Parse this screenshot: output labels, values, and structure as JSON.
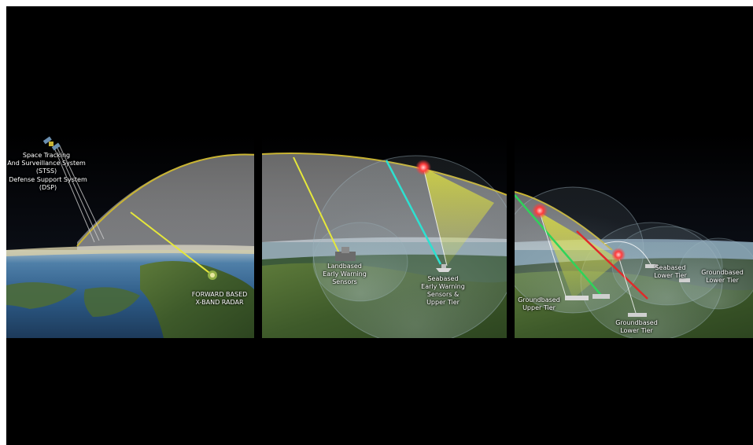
{
  "colors": {
    "background": "#000000",
    "trajectory": "#c9b433",
    "sensor_beam_yellow": "#e6e83a",
    "sensor_beam_cyan": "#2ee0d0",
    "interceptor_green": "#2fd35a",
    "interceptor_red": "#e02a2a",
    "threat_burst": "#ff3b3b"
  },
  "panels": {
    "left": {
      "stss_lines": [
        "Space Tracking",
        "And Surveillance System",
        "(STSS)"
      ],
      "dsp_lines": [
        "Defense Support System",
        "(DSP)"
      ],
      "radar_lines": [
        "FORWARD BASED",
        "X-BAND RADAR"
      ],
      "icons": {
        "satellite": "satellite-icon",
        "radar": "radar-site-icon"
      }
    },
    "middle": {
      "landbased_lines": [
        "Landbased",
        "Early Warning",
        "Sensors"
      ],
      "seabased_lines": [
        "Seabased",
        "Early Warning",
        "Sensors &",
        "Upper Tier"
      ],
      "icons": {
        "landbased": "radar-building-icon",
        "seabased": "ship-icon",
        "burst": "intercept-burst-icon"
      }
    },
    "right": {
      "ground_upper_lines": [
        "Groundbased",
        "Upper Tier"
      ],
      "ground_lower_lines": [
        "Groundbased",
        "Lower Tier"
      ],
      "sea_lower_lines": [
        "Seabased",
        "Lower Tier"
      ],
      "ground_lower_far_lines": [
        "Groundbased",
        "Lower Tier"
      ],
      "icons": {
        "launcher": "launcher-icon",
        "burst": "intercept-burst-icon"
      }
    }
  }
}
